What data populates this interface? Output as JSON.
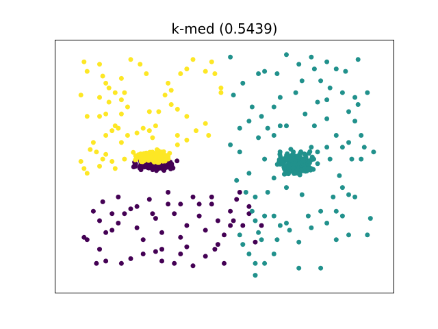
{
  "chart_data": {
    "type": "scatter",
    "title": "k-med (0.5439)",
    "xlabel": "",
    "ylabel": "",
    "xlim": [
      0,
      100
    ],
    "ylim": [
      0,
      100
    ],
    "grid": false,
    "axis_ticks": false,
    "colors": {
      "cluster_0": "#440154",
      "cluster_1": "#21918c",
      "cluster_2": "#fde725"
    },
    "clusters": [
      {
        "color_key": "cluster_0",
        "points": [
          [
            8,
            30
          ],
          [
            10,
            26
          ],
          [
            12,
            21
          ],
          [
            11,
            34
          ],
          [
            14,
            22
          ],
          [
            16,
            25
          ],
          [
            18,
            29
          ],
          [
            20,
            31
          ],
          [
            22,
            23
          ],
          [
            24,
            18
          ],
          [
            26,
            35
          ],
          [
            28,
            27
          ],
          [
            30,
            21
          ],
          [
            32,
            33
          ],
          [
            34,
            29
          ],
          [
            36,
            19
          ],
          [
            38,
            24
          ],
          [
            40,
            36
          ],
          [
            42,
            28
          ],
          [
            44,
            22
          ],
          [
            46,
            33
          ],
          [
            48,
            26
          ],
          [
            50,
            20
          ],
          [
            52,
            30
          ],
          [
            54,
            35
          ],
          [
            56,
            24
          ],
          [
            58,
            29
          ],
          [
            60,
            17
          ],
          [
            48,
            16
          ],
          [
            30,
            14
          ],
          [
            20,
            10
          ],
          [
            10,
            14
          ],
          [
            6,
            18
          ],
          [
            9,
            8
          ],
          [
            12,
            9
          ],
          [
            17,
            8
          ],
          [
            28,
            13
          ],
          [
            34,
            8
          ],
          [
            38,
            15
          ],
          [
            44,
            11
          ],
          [
            40,
            7
          ],
          [
            47,
            14
          ],
          [
            50,
            8
          ],
          [
            36,
            12
          ],
          [
            30,
            9
          ],
          [
            24,
            12
          ],
          [
            52,
            24
          ],
          [
            55,
            38
          ],
          [
            58,
            32
          ],
          [
            14,
            29
          ],
          [
            22,
            32
          ],
          [
            27,
            29
          ],
          [
            42,
            33
          ],
          [
            46,
            36
          ],
          [
            62,
            24
          ],
          [
            36,
            33
          ],
          [
            32,
            38
          ],
          [
            16,
            36
          ],
          [
            53,
            26
          ],
          [
            5,
            19
          ]
        ],
        "blob": {
          "cx": 28,
          "cy": 50,
          "rx": 5.5,
          "ry": 2.5,
          "n": 220
        }
      },
      {
        "color_key": "cluster_1",
        "points": [
          [
            52,
            95
          ],
          [
            56,
            84
          ],
          [
            53,
            79
          ],
          [
            58,
            68
          ],
          [
            55,
            65
          ],
          [
            52,
            58
          ],
          [
            55,
            55
          ],
          [
            54,
            43
          ],
          [
            57,
            38
          ],
          [
            60,
            36
          ],
          [
            59,
            30
          ],
          [
            61,
            21
          ],
          [
            55,
            20
          ],
          [
            56,
            16
          ],
          [
            58,
            12
          ],
          [
            60,
            8
          ],
          [
            62,
            18
          ],
          [
            60,
            26
          ],
          [
            63,
            28
          ],
          [
            66,
            28
          ],
          [
            68,
            24
          ],
          [
            67,
            18
          ],
          [
            66,
            12
          ],
          [
            71,
            22
          ],
          [
            74,
            17
          ],
          [
            77,
            28
          ],
          [
            78,
            23
          ],
          [
            81,
            30
          ],
          [
            83,
            25
          ],
          [
            86,
            30
          ],
          [
            88,
            40
          ],
          [
            90,
            37
          ],
          [
            92,
            36
          ],
          [
            87,
            45
          ],
          [
            84,
            52
          ],
          [
            80,
            55
          ],
          [
            77,
            48
          ],
          [
            73,
            46
          ],
          [
            75,
            37
          ],
          [
            70,
            40
          ],
          [
            66,
            44
          ],
          [
            63,
            52
          ],
          [
            61,
            61
          ],
          [
            64,
            65
          ],
          [
            66,
            74
          ],
          [
            68,
            78
          ],
          [
            73,
            80
          ],
          [
            75,
            85
          ],
          [
            79,
            90
          ],
          [
            81,
            85
          ],
          [
            84,
            82
          ],
          [
            88,
            80
          ],
          [
            92,
            78
          ],
          [
            96,
            80
          ],
          [
            93,
            75
          ],
          [
            92,
            68
          ],
          [
            94,
            62
          ],
          [
            98,
            55
          ],
          [
            94,
            52
          ],
          [
            91,
            52
          ],
          [
            90,
            59
          ],
          [
            86,
            62
          ],
          [
            83,
            69
          ],
          [
            80,
            76
          ],
          [
            76,
            71
          ],
          [
            70,
            66
          ],
          [
            66,
            62
          ],
          [
            62,
            70
          ],
          [
            59,
            74
          ],
          [
            63,
            89
          ],
          [
            67,
            88
          ],
          [
            70,
            96
          ],
          [
            74,
            92
          ],
          [
            78,
            95
          ],
          [
            83,
            93
          ],
          [
            86,
            90
          ],
          [
            89,
            89
          ],
          [
            93,
            94
          ],
          [
            86,
            18
          ],
          [
            90,
            20
          ],
          [
            96,
            20
          ],
          [
            81,
            6
          ],
          [
            70,
            25
          ],
          [
            64,
            38
          ],
          [
            58,
            46
          ],
          [
            61,
            88
          ],
          [
            68,
            66
          ],
          [
            72,
            54
          ],
          [
            78,
            57
          ],
          [
            83,
            57
          ],
          [
            88,
            57
          ],
          [
            95,
            57
          ],
          [
            97,
            27
          ],
          [
            74,
            6
          ],
          [
            60,
            3
          ],
          [
            63,
            8
          ],
          [
            79,
            66
          ],
          [
            83,
            77
          ],
          [
            90,
            72
          ],
          [
            85,
            36
          ],
          [
            88,
            28
          ]
        ],
        "blob": {
          "cx": 73,
          "cy": 50,
          "rx": 5.5,
          "ry": 5.2,
          "n": 240
        }
      },
      {
        "color_key": "cluster_2",
        "points": [
          [
            5,
            93
          ],
          [
            6,
            89
          ],
          [
            10,
            92
          ],
          [
            11,
            87
          ],
          [
            12,
            84
          ],
          [
            13,
            82
          ],
          [
            15,
            80
          ],
          [
            17,
            77
          ],
          [
            10,
            78
          ],
          [
            4,
            79
          ],
          [
            6,
            70
          ],
          [
            10,
            70
          ],
          [
            13,
            76
          ],
          [
            12,
            71
          ],
          [
            14,
            64
          ],
          [
            15,
            66
          ],
          [
            16,
            65
          ],
          [
            12,
            62
          ],
          [
            8,
            59
          ],
          [
            7,
            56
          ],
          [
            9,
            55
          ],
          [
            11,
            52
          ],
          [
            12,
            54
          ],
          [
            10,
            49
          ],
          [
            5,
            48
          ],
          [
            4,
            51
          ],
          [
            6,
            46
          ],
          [
            14,
            51
          ],
          [
            15,
            48
          ],
          [
            18,
            52
          ],
          [
            17,
            59
          ],
          [
            19,
            62
          ],
          [
            22,
            63
          ],
          [
            24,
            65
          ],
          [
            26,
            64
          ],
          [
            27,
            61
          ],
          [
            30,
            55
          ],
          [
            32,
            53
          ],
          [
            35,
            58
          ],
          [
            38,
            60
          ],
          [
            41,
            64
          ],
          [
            44,
            67
          ],
          [
            45,
            62
          ],
          [
            38,
            70
          ],
          [
            35,
            73
          ],
          [
            33,
            75
          ],
          [
            31,
            79
          ],
          [
            33,
            81
          ],
          [
            32,
            84
          ],
          [
            36,
            88
          ],
          [
            38,
            90
          ],
          [
            40,
            94
          ],
          [
            44,
            89
          ],
          [
            46,
            93
          ],
          [
            47,
            88
          ],
          [
            25,
            88
          ],
          [
            23,
            92
          ],
          [
            20,
            94
          ],
          [
            17,
            86
          ],
          [
            17,
            71
          ],
          [
            18,
            80
          ],
          [
            19,
            74
          ],
          [
            26,
            72
          ],
          [
            29,
            72
          ],
          [
            35,
            62
          ],
          [
            28,
            66
          ],
          [
            49,
            82
          ],
          [
            49,
            80
          ]
        ],
        "blob": {
          "cx": 27,
          "cy": 53,
          "rx": 5.2,
          "ry": 2.4,
          "n": 220
        }
      }
    ]
  }
}
